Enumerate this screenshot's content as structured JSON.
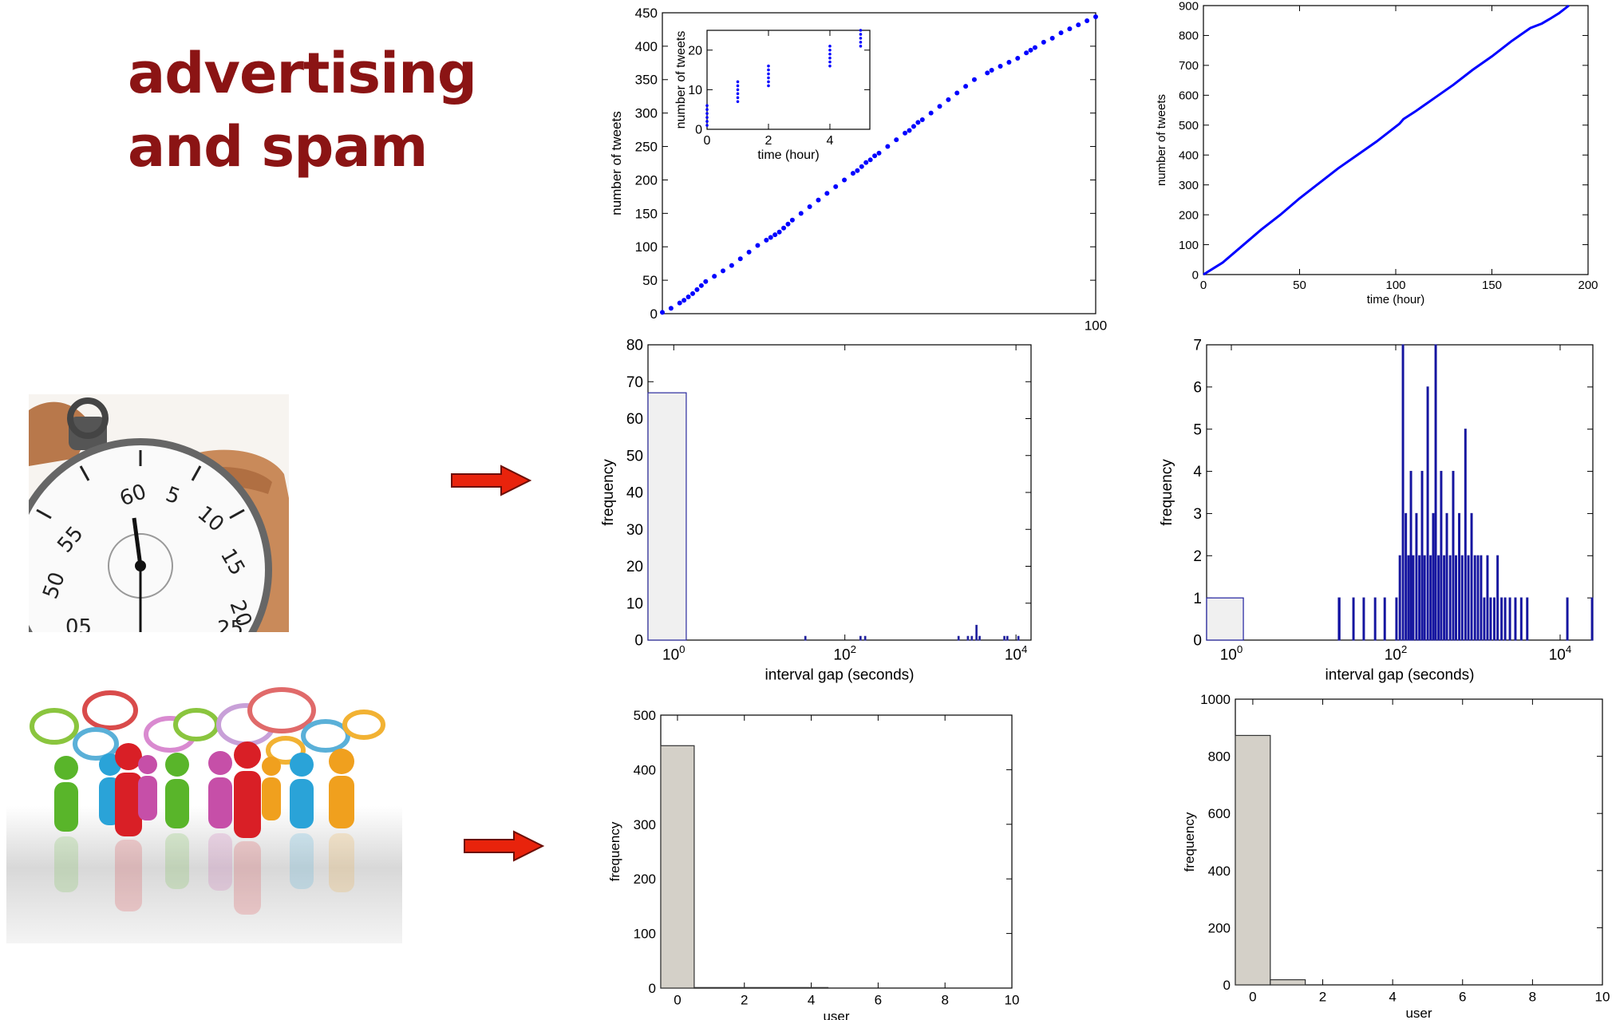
{
  "slide": {
    "title_line1": "advertising",
    "title_line2": "and spam"
  },
  "chart_data": [
    {
      "id": "ad-tweets-over-time",
      "type": "scatter",
      "xlabel": "",
      "ylabel": "number of tweets",
      "xlim": [
        0,
        100
      ],
      "ylim": [
        0,
        450
      ],
      "yticks": [
        0,
        50,
        100,
        150,
        200,
        250,
        300,
        350,
        400,
        450
      ],
      "xticks": [
        100
      ],
      "series_color": "#0000ff",
      "x": [
        0,
        2,
        4,
        5,
        6,
        7,
        8,
        9,
        10,
        12,
        14,
        16,
        18,
        20,
        22,
        24,
        25,
        26,
        27,
        28,
        29,
        30,
        32,
        34,
        36,
        38,
        40,
        42,
        44,
        45,
        46,
        47,
        48,
        49,
        50,
        52,
        54,
        56,
        57,
        58,
        59,
        60,
        62,
        64,
        66,
        68,
        70,
        72,
        75,
        76,
        78,
        80,
        82,
        84,
        85,
        86,
        88,
        90,
        92,
        94,
        96,
        98,
        100
      ],
      "y": [
        2,
        8,
        16,
        20,
        25,
        30,
        36,
        42,
        48,
        56,
        64,
        72,
        82,
        92,
        102,
        110,
        114,
        118,
        122,
        128,
        134,
        140,
        150,
        160,
        170,
        180,
        190,
        200,
        210,
        214,
        220,
        226,
        230,
        236,
        240,
        250,
        260,
        270,
        274,
        280,
        286,
        290,
        300,
        310,
        320,
        330,
        340,
        350,
        360,
        364,
        370,
        376,
        382,
        390,
        394,
        398,
        406,
        412,
        420,
        426,
        432,
        438,
        444
      ],
      "inset": {
        "type": "scatter",
        "xlabel": "time (hour)",
        "ylabel": "number of tweets",
        "xlim": [
          0,
          5.3
        ],
        "ylim": [
          0,
          25
        ],
        "xticks": [
          0,
          2,
          4
        ],
        "yticks": [
          0,
          10,
          20
        ],
        "x": [
          0,
          0,
          0,
          0,
          0,
          0,
          1,
          1,
          1,
          1,
          1,
          1,
          2,
          2,
          2,
          2,
          2,
          2,
          4,
          4,
          4,
          4,
          4,
          4,
          5,
          5,
          5,
          5,
          5
        ],
        "y": [
          1,
          2,
          3,
          4,
          5,
          6,
          7,
          8,
          9,
          10,
          11,
          12,
          11,
          12,
          13,
          14,
          15,
          16,
          16,
          17,
          18,
          19,
          20,
          21,
          21,
          22,
          23,
          24,
          25
        ]
      }
    },
    {
      "id": "spam-tweets-over-time",
      "type": "line",
      "xlabel": "time (hour)",
      "ylabel": "number of tweets",
      "xlim": [
        0,
        200
      ],
      "ylim": [
        0,
        900
      ],
      "xticks": [
        0,
        50,
        100,
        150,
        200
      ],
      "yticks": [
        0,
        100,
        200,
        300,
        400,
        500,
        600,
        700,
        800,
        900
      ],
      "series_color": "#0000ff",
      "x": [
        0,
        10,
        20,
        30,
        40,
        50,
        60,
        70,
        80,
        90,
        100,
        102,
        104,
        110,
        120,
        130,
        140,
        150,
        160,
        170,
        176,
        180,
        185,
        190
      ],
      "y": [
        0,
        40,
        95,
        150,
        200,
        255,
        305,
        355,
        400,
        445,
        495,
        505,
        520,
        545,
        590,
        635,
        685,
        730,
        780,
        825,
        840,
        855,
        875,
        900
      ]
    },
    {
      "id": "ad-interval-gap",
      "type": "bar",
      "xscale": "log",
      "xlabel": "interval gap (seconds)",
      "ylabel": "frequency",
      "xlim": [
        0.5,
        15000
      ],
      "ylim": [
        0,
        80
      ],
      "yticks": [
        0,
        10,
        20,
        30,
        40,
        50,
        60,
        70,
        80
      ],
      "xticks": [
        1,
        100,
        10000
      ],
      "xtick_labels": [
        "10^0",
        "10^2",
        "10^4"
      ],
      "bins": [
        {
          "x0": 0.5,
          "x1": 1.4,
          "value": 67
        },
        {
          "x0": 34,
          "x1": 35,
          "value": 1
        },
        {
          "x0": 150,
          "x1": 153,
          "value": 1
        },
        {
          "x0": 170,
          "x1": 173,
          "value": 1
        },
        {
          "x0": 2100,
          "x1": 2150,
          "value": 1
        },
        {
          "x0": 2700,
          "x1": 2750,
          "value": 1
        },
        {
          "x0": 3000,
          "x1": 3050,
          "value": 1
        },
        {
          "x0": 3400,
          "x1": 3460,
          "value": 4
        },
        {
          "x0": 3700,
          "x1": 3760,
          "value": 1
        },
        {
          "x0": 7200,
          "x1": 7300,
          "value": 1
        },
        {
          "x0": 7800,
          "x1": 7900,
          "value": 1
        },
        {
          "x0": 10500,
          "x1": 10600,
          "value": 1
        }
      ]
    },
    {
      "id": "spam-interval-gap",
      "type": "bar",
      "xscale": "log",
      "xlabel": "interval gap (seconds)",
      "ylabel": "frequency",
      "xlim": [
        0.5,
        25000
      ],
      "ylim": [
        0,
        7
      ],
      "yticks": [
        0,
        1,
        2,
        3,
        4,
        5,
        6,
        7
      ],
      "xticks": [
        1,
        100,
        10000
      ],
      "xtick_labels": [
        "10^0",
        "10^2",
        "10^4"
      ],
      "bins": [
        {
          "x0": 0.5,
          "x1": 1.4,
          "value": 1
        },
        {
          "x0": 20,
          "x1": 21,
          "value": 1
        },
        {
          "x0": 30,
          "x1": 31,
          "value": 1
        },
        {
          "x0": 40,
          "x1": 41,
          "value": 1
        },
        {
          "x0": 55,
          "x1": 56,
          "value": 1
        },
        {
          "x0": 72,
          "x1": 73,
          "value": 1
        },
        {
          "x0": 100,
          "x1": 101,
          "value": 1
        },
        {
          "x0": 110,
          "x1": 112,
          "value": 2
        },
        {
          "x0": 120,
          "x1": 122,
          "value": 7
        },
        {
          "x0": 130,
          "x1": 132,
          "value": 3
        },
        {
          "x0": 140,
          "x1": 142,
          "value": 2
        },
        {
          "x0": 150,
          "x1": 152,
          "value": 4
        },
        {
          "x0": 160,
          "x1": 162,
          "value": 2
        },
        {
          "x0": 175,
          "x1": 177,
          "value": 3
        },
        {
          "x0": 190,
          "x1": 192,
          "value": 2
        },
        {
          "x0": 205,
          "x1": 207,
          "value": 4
        },
        {
          "x0": 220,
          "x1": 222,
          "value": 2
        },
        {
          "x0": 240,
          "x1": 242,
          "value": 6
        },
        {
          "x0": 260,
          "x1": 262,
          "value": 2
        },
        {
          "x0": 280,
          "x1": 282,
          "value": 3
        },
        {
          "x0": 300,
          "x1": 303,
          "value": 7
        },
        {
          "x0": 325,
          "x1": 328,
          "value": 2
        },
        {
          "x0": 350,
          "x1": 353,
          "value": 4
        },
        {
          "x0": 380,
          "x1": 383,
          "value": 2
        },
        {
          "x0": 410,
          "x1": 413,
          "value": 3
        },
        {
          "x0": 450,
          "x1": 454,
          "value": 2
        },
        {
          "x0": 490,
          "x1": 494,
          "value": 4
        },
        {
          "x0": 530,
          "x1": 534,
          "value": 2
        },
        {
          "x0": 580,
          "x1": 584,
          "value": 3
        },
        {
          "x0": 630,
          "x1": 635,
          "value": 2
        },
        {
          "x0": 690,
          "x1": 695,
          "value": 5
        },
        {
          "x0": 750,
          "x1": 755,
          "value": 2
        },
        {
          "x0": 820,
          "x1": 826,
          "value": 3
        },
        {
          "x0": 900,
          "x1": 906,
          "value": 2
        },
        {
          "x0": 980,
          "x1": 987,
          "value": 2
        },
        {
          "x0": 1070,
          "x1": 1077,
          "value": 2
        },
        {
          "x0": 1170,
          "x1": 1178,
          "value": 1
        },
        {
          "x0": 1280,
          "x1": 1288,
          "value": 2
        },
        {
          "x0": 1400,
          "x1": 1409,
          "value": 1
        },
        {
          "x0": 1550,
          "x1": 1560,
          "value": 1
        },
        {
          "x0": 1700,
          "x1": 1711,
          "value": 2
        },
        {
          "x0": 1900,
          "x1": 1912,
          "value": 1
        },
        {
          "x0": 2100,
          "x1": 2113,
          "value": 1
        },
        {
          "x0": 2400,
          "x1": 2415,
          "value": 1
        },
        {
          "x0": 2800,
          "x1": 2817,
          "value": 1
        },
        {
          "x0": 3300,
          "x1": 3320,
          "value": 1
        },
        {
          "x0": 3900,
          "x1": 3924,
          "value": 1
        },
        {
          "x0": 12000,
          "x1": 12070,
          "value": 1
        },
        {
          "x0": 24000,
          "x1": 24140,
          "value": 1
        }
      ]
    },
    {
      "id": "ad-user-distribution",
      "type": "bar",
      "xlabel": "user",
      "ylabel": "frequency",
      "xlim": [
        -0.5,
        10
      ],
      "ylim": [
        0,
        500
      ],
      "xticks": [
        0,
        2,
        4,
        6,
        8,
        10
      ],
      "yticks": [
        0,
        100,
        200,
        300,
        400,
        500
      ],
      "bins": [
        {
          "x0": -0.5,
          "x1": 0.5,
          "value": 444
        },
        {
          "x0": 0.5,
          "x1": 4.5,
          "value": 1
        }
      ]
    },
    {
      "id": "spam-user-distribution",
      "type": "bar",
      "xlabel": "user",
      "ylabel": "frequency",
      "xlim": [
        -0.5,
        10
      ],
      "ylim": [
        0,
        1000
      ],
      "xticks": [
        0,
        2,
        4,
        6,
        8,
        10
      ],
      "yticks": [
        0,
        200,
        400,
        600,
        800,
        1000
      ],
      "bins": [
        {
          "x0": -0.5,
          "x1": 0.5,
          "value": 873
        },
        {
          "x0": 0.5,
          "x1": 1.5,
          "value": 18
        }
      ]
    }
  ]
}
